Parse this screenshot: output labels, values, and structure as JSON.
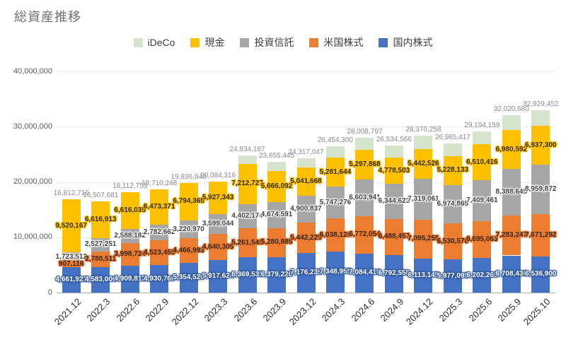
{
  "chart_data": {
    "type": "bar",
    "stacked": true,
    "title": "総資産推移",
    "categories": [
      "2021.12",
      "2022.3",
      "2022.6",
      "2022.9",
      "2022.12",
      "2023.3",
      "2023.6",
      "2023.9",
      "2023.12",
      "2024.3",
      "2024.6",
      "2024.9",
      "2024.12",
      "2025.3",
      "2025.6",
      "2025.9",
      "2025.10"
    ],
    "series": [
      {
        "name": "国内株式",
        "color": "#4472C4",
        "label_text": "#ffffff",
        "label_glow": "#2F5597",
        "show_labels": true,
        "values": [
          4661921,
          4583006,
          4909812,
          4930760,
          5354520,
          5917624,
          6369535,
          6379220,
          7176235,
          7348955,
          7084410,
          6792550,
          6113145,
          5977095,
          6202265,
          6708436,
          6536900
        ]
      },
      {
        "name": "米国株式",
        "color": "#ED7D31",
        "label_text": "#332417",
        "label_glow": "#ED7D31",
        "show_labels": true,
        "values": [
          907116,
          2780511,
          3998724,
          4523455,
          4466993,
          4640305,
          5261545,
          5280885,
          5442225,
          6038126,
          6772054,
          6488457,
          7095255,
          6530570,
          6695063,
          7283247,
          7671292
        ]
      },
      {
        "name": "投資信託",
        "color": "#A6A6A6",
        "label_text": "#3f3f3f",
        "label_glow": "#ffffff",
        "show_labels": true,
        "values": [
          1723512,
          2527251,
          2588182,
          2782662,
          3220970,
          3599044,
          4402174,
          4674591,
          4900837,
          5747276,
          6603941,
          6344623,
          7319061,
          6974865,
          7409461,
          8388645,
          8959872
        ]
      },
      {
        "name": "現金",
        "color": "#FFC000",
        "label_text": "#332c0f",
        "label_glow": "#FFC000",
        "show_labels": true,
        "values": [
          9520167,
          6616913,
          6616035,
          6473371,
          6794365,
          5927343,
          7212727,
          5666092,
          5041668,
          5281644,
          5297868,
          4778503,
          5442526,
          5228133,
          6510416,
          6980592,
          6937300
        ]
      },
      {
        "name": "iDeCo",
        "color": "#D6E4CB",
        "label_text": "#3f3f3f",
        "label_glow": "#D6E4CB",
        "show_labels": false,
        "values": [
          0,
          0,
          0,
          0,
          0,
          0,
          1588206,
          1654657,
          1756082,
          2038299,
          2250524,
          2130433,
          2400271,
          2274754,
          2376954,
          2659760,
          2824088
        ]
      }
    ],
    "totals": [
      16812716,
      16507681,
      18112753,
      18710248,
      19836848,
      20084316,
      24834187,
      23655445,
      24317047,
      26454300,
      28008797,
      26534566,
      28370258,
      26985417,
      29194159,
      32020680,
      32929452
    ],
    "ylim": [
      0,
      40000000
    ],
    "yticks": [
      "0",
      "10,000,000",
      "20,000,000",
      "30,000,000",
      "40,000,000"
    ],
    "legend": {
      "position": "top",
      "order": [
        "iDeCo",
        "現金",
        "投資信託",
        "米国株式",
        "国内株式"
      ]
    },
    "grid": "horizontal-dotted",
    "totals_color": "#8a8a8a"
  }
}
